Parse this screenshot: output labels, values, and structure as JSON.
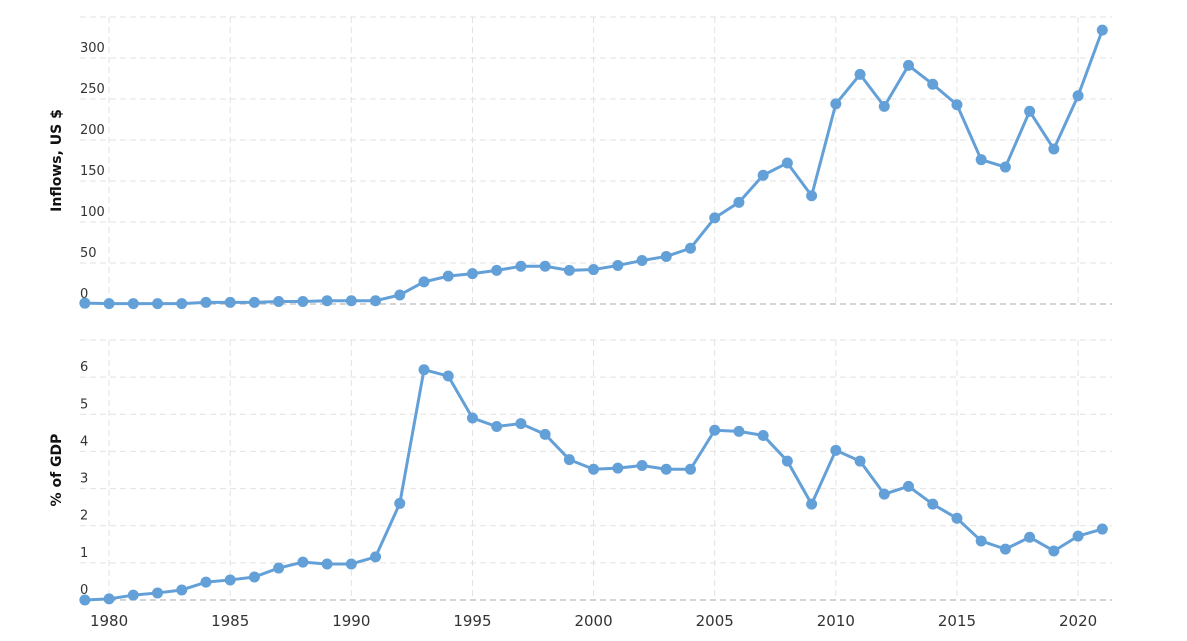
{
  "chart_data": [
    {
      "type": "line",
      "ylabel": "Inflows, US $",
      "color": "#64a0d8",
      "x": [
        1979,
        1980,
        1981,
        1982,
        1983,
        1984,
        1985,
        1986,
        1987,
        1988,
        1989,
        1990,
        1991,
        1992,
        1993,
        1994,
        1995,
        1996,
        1997,
        1998,
        1999,
        2000,
        2001,
        2002,
        2003,
        2004,
        2005,
        2006,
        2007,
        2008,
        2009,
        2010,
        2011,
        2012,
        2013,
        2014,
        2015,
        2016,
        2017,
        2018,
        2019,
        2020,
        2021
      ],
      "values": [
        1,
        0.5,
        0.5,
        0.5,
        0.5,
        2,
        2,
        2,
        3,
        3,
        4,
        4,
        4,
        11,
        27,
        34,
        37,
        41,
        46,
        46,
        41,
        42,
        47,
        53,
        58,
        68,
        105,
        124,
        157,
        172,
        132,
        244,
        280,
        241,
        291,
        268,
        243,
        176,
        167,
        235,
        189,
        254,
        334
      ],
      "xlim": [
        1978.8,
        2021.4
      ],
      "xticks": [
        1980,
        1985,
        1990,
        1995,
        2000,
        2005,
        2010,
        2015,
        2020
      ],
      "ylim": [
        0,
        350
      ],
      "yticks": [
        0,
        50,
        100,
        150,
        200,
        250,
        300
      ],
      "grid": true
    },
    {
      "type": "line",
      "ylabel": "% of GDP",
      "color": "#64a0d8",
      "x": [
        1979,
        1980,
        1981,
        1982,
        1983,
        1984,
        1985,
        1986,
        1987,
        1988,
        1989,
        1990,
        1991,
        1992,
        1993,
        1994,
        1995,
        1996,
        1997,
        1998,
        1999,
        2000,
        2001,
        2002,
        2003,
        2004,
        2005,
        2006,
        2007,
        2008,
        2009,
        2010,
        2011,
        2012,
        2013,
        2014,
        2015,
        2016,
        2017,
        2018,
        2019,
        2020,
        2021
      ],
      "values": [
        0,
        0.03,
        0.13,
        0.19,
        0.27,
        0.48,
        0.54,
        0.62,
        0.86,
        1.02,
        0.97,
        0.97,
        1.16,
        2.6,
        6.2,
        6.03,
        4.9,
        4.67,
        4.75,
        4.46,
        3.78,
        3.52,
        3.55,
        3.62,
        3.52,
        3.52,
        4.57,
        4.54,
        4.43,
        3.74,
        2.58,
        4.03,
        3.74,
        2.85,
        3.06,
        2.58,
        2.2,
        1.59,
        1.37,
        1.69,
        1.32,
        1.72,
        1.91
      ],
      "xlim": [
        1978.8,
        2021.4
      ],
      "xticks": [
        1980,
        1985,
        1990,
        1995,
        2000,
        2005,
        2010,
        2015,
        2020
      ],
      "ylim": [
        0,
        7
      ],
      "yticks": [
        0,
        1,
        2,
        3,
        4,
        5,
        6
      ],
      "grid": true
    }
  ]
}
